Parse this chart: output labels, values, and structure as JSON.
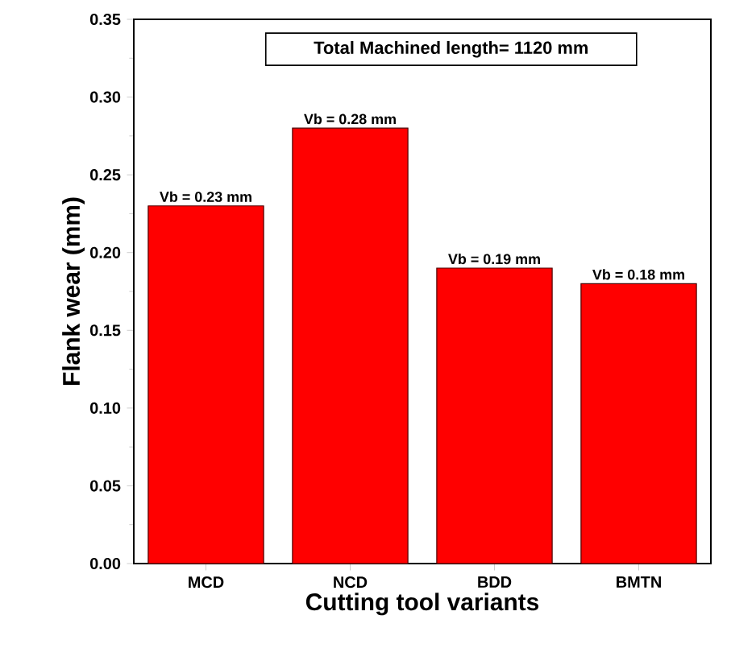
{
  "chart_data": {
    "type": "bar",
    "xlabel": "Cutting tool variants",
    "ylabel": "Flank wear (mm)",
    "categories": [
      "MCD",
      "NCD",
      "BDD",
      "BMTN"
    ],
    "values": [
      0.23,
      0.28,
      0.19,
      0.18
    ],
    "value_labels": [
      "Vb = 0.23 mm",
      "Vb = 0.28 mm",
      "Vb = 0.19 mm",
      "Vb = 0.18 mm"
    ],
    "color": "#ff0000",
    "ylim": [
      0,
      0.35
    ],
    "yticks": [
      {
        "value": 0,
        "label": "0.00"
      },
      {
        "value": 0.05,
        "label": "0.05"
      },
      {
        "value": 0.1,
        "label": "0.10"
      },
      {
        "value": 0.15,
        "label": "0.15"
      },
      {
        "value": 0.2,
        "label": "0.20"
      },
      {
        "value": 0.25,
        "label": "0.25"
      },
      {
        "value": 0.3,
        "label": "0.30"
      },
      {
        "value": 0.35,
        "label": "0.35"
      }
    ],
    "annotations": [
      "Total Machined length= 1120 mm"
    ],
    "grid": false
  }
}
